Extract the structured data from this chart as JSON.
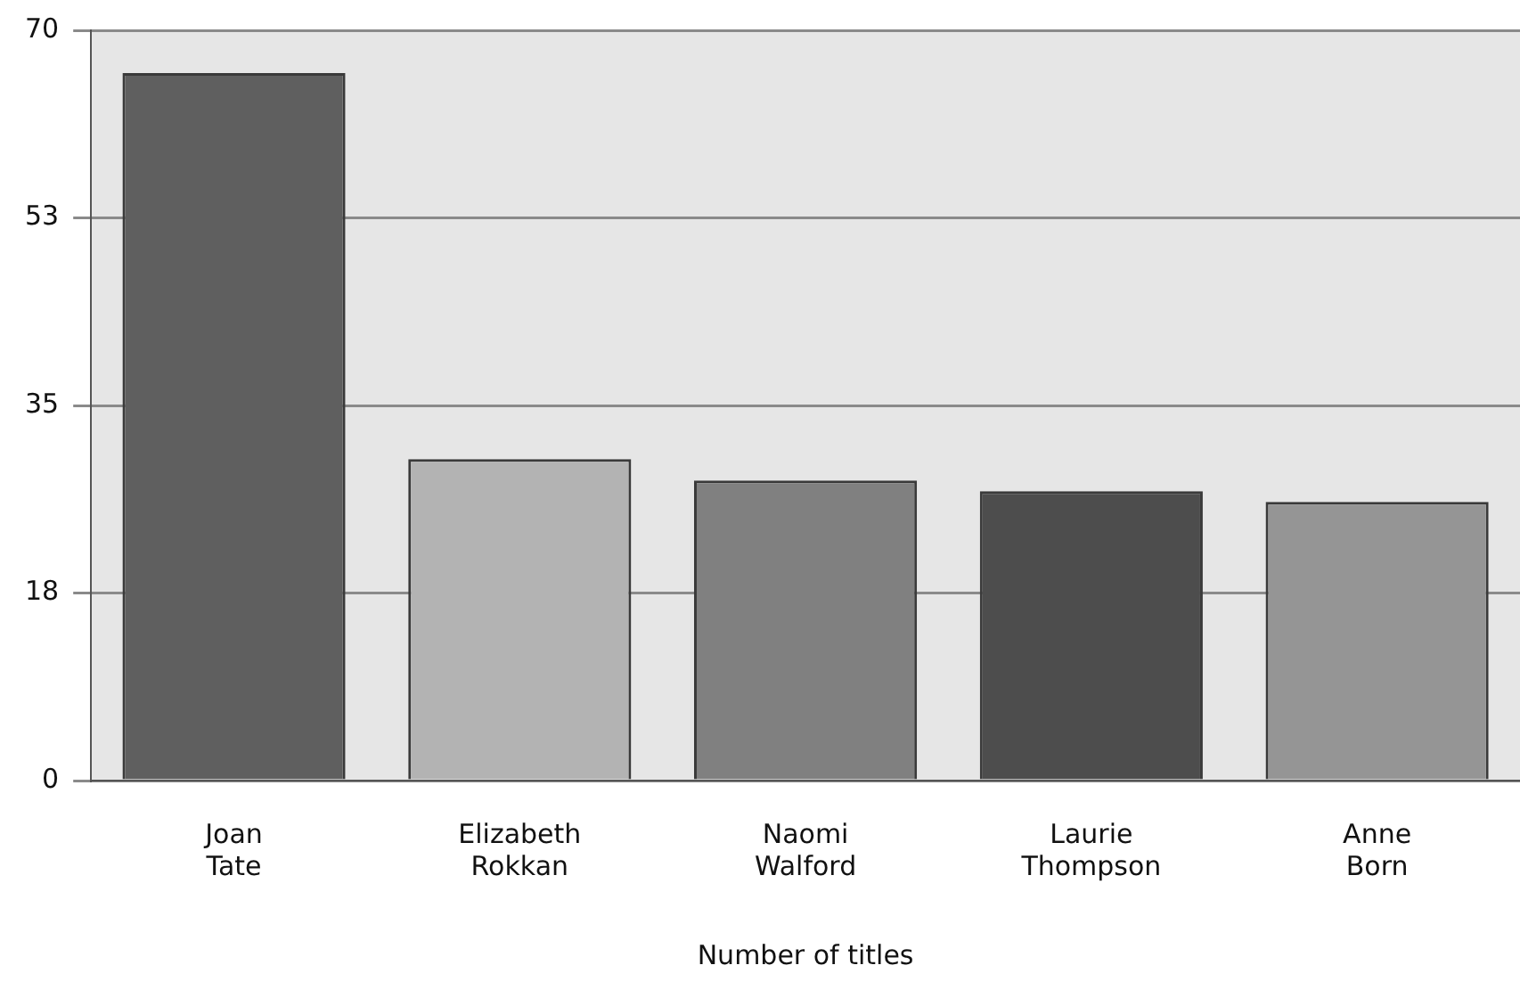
{
  "chart_data": {
    "type": "bar",
    "xlabel": "Number of titles",
    "categories": [
      "Joan Tate",
      "Elizabeth Rokkan",
      "Naomi Walford",
      "Laurie Thompson",
      "Anne Born"
    ],
    "values": [
      66,
      30,
      28,
      27,
      26
    ],
    "colors": [
      "#5f5f5f",
      "#b3b3b3",
      "#808080",
      "#4d4d4d",
      "#959595"
    ],
    "ylim": [
      0,
      70
    ],
    "yticks": [
      0,
      {
        "value": 17.5,
        "label": "18"
      },
      35,
      {
        "value": 52.5,
        "label": "53"
      },
      70
    ],
    "grid": "y",
    "legend": false
  }
}
